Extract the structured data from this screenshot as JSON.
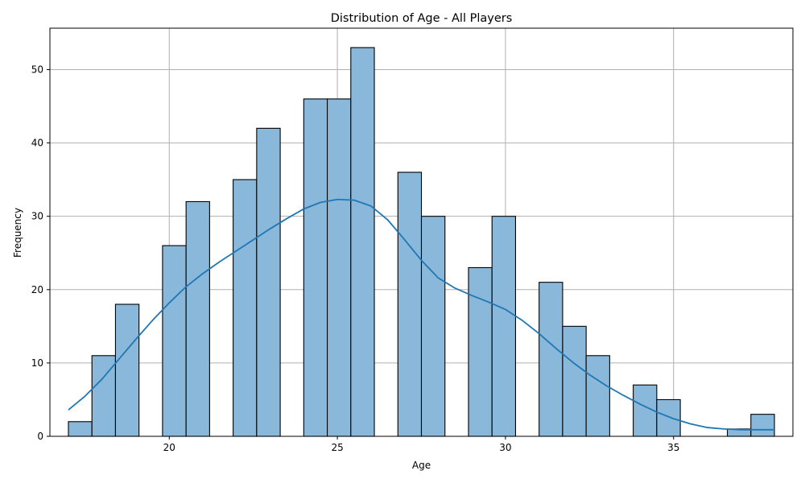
{
  "chart_data": {
    "type": "bar",
    "title": "Distribution of Age - All Players",
    "xlabel": "Age",
    "ylabel": "Frequency",
    "xlim": [
      16.45,
      38.55
    ],
    "ylim": [
      0,
      55.65
    ],
    "xticks": [
      20,
      25,
      30,
      35
    ],
    "yticks": [
      0,
      10,
      20,
      30,
      40,
      50
    ],
    "grid": true,
    "bin_start": 17,
    "bin_width": 0.7,
    "counts": [
      2,
      11,
      18,
      0,
      26,
      32,
      0,
      35,
      42,
      0,
      46,
      46,
      53,
      0,
      36,
      30,
      0,
      23,
      30,
      0,
      21,
      15,
      11,
      0,
      7,
      5,
      0,
      0,
      1,
      3
    ],
    "kde": {
      "x": [
        17,
        17.5,
        18,
        18.5,
        19,
        19.5,
        20,
        20.5,
        21,
        21.5,
        22,
        22.5,
        23,
        23.5,
        24,
        24.5,
        25,
        25.5,
        26,
        26.5,
        27,
        27.5,
        28,
        28.5,
        29,
        29.5,
        30,
        30.5,
        31,
        31.5,
        32,
        32.5,
        33,
        33.5,
        34,
        34.5,
        35,
        35.5,
        36,
        36.5,
        37,
        37.5,
        38
      ],
      "y": [
        3.6,
        5.5,
        7.8,
        10.5,
        13.2,
        15.8,
        18.2,
        20.4,
        22.2,
        23.8,
        25.3,
        26.8,
        28.3,
        29.7,
        31.0,
        31.9,
        32.3,
        32.2,
        31.4,
        29.5,
        26.8,
        24.0,
        21.6,
        20.2,
        19.2,
        18.3,
        17.3,
        15.8,
        14.0,
        12.0,
        10.1,
        8.4,
        6.9,
        5.6,
        4.4,
        3.3,
        2.4,
        1.7,
        1.2,
        1.0,
        0.9,
        0.9,
        0.9
      ]
    },
    "colors": {
      "bar_fill": "#8ab8da",
      "bar_edge": "#000000",
      "kde_line": "#1f77b4",
      "grid": "#b0b0b0"
    }
  }
}
